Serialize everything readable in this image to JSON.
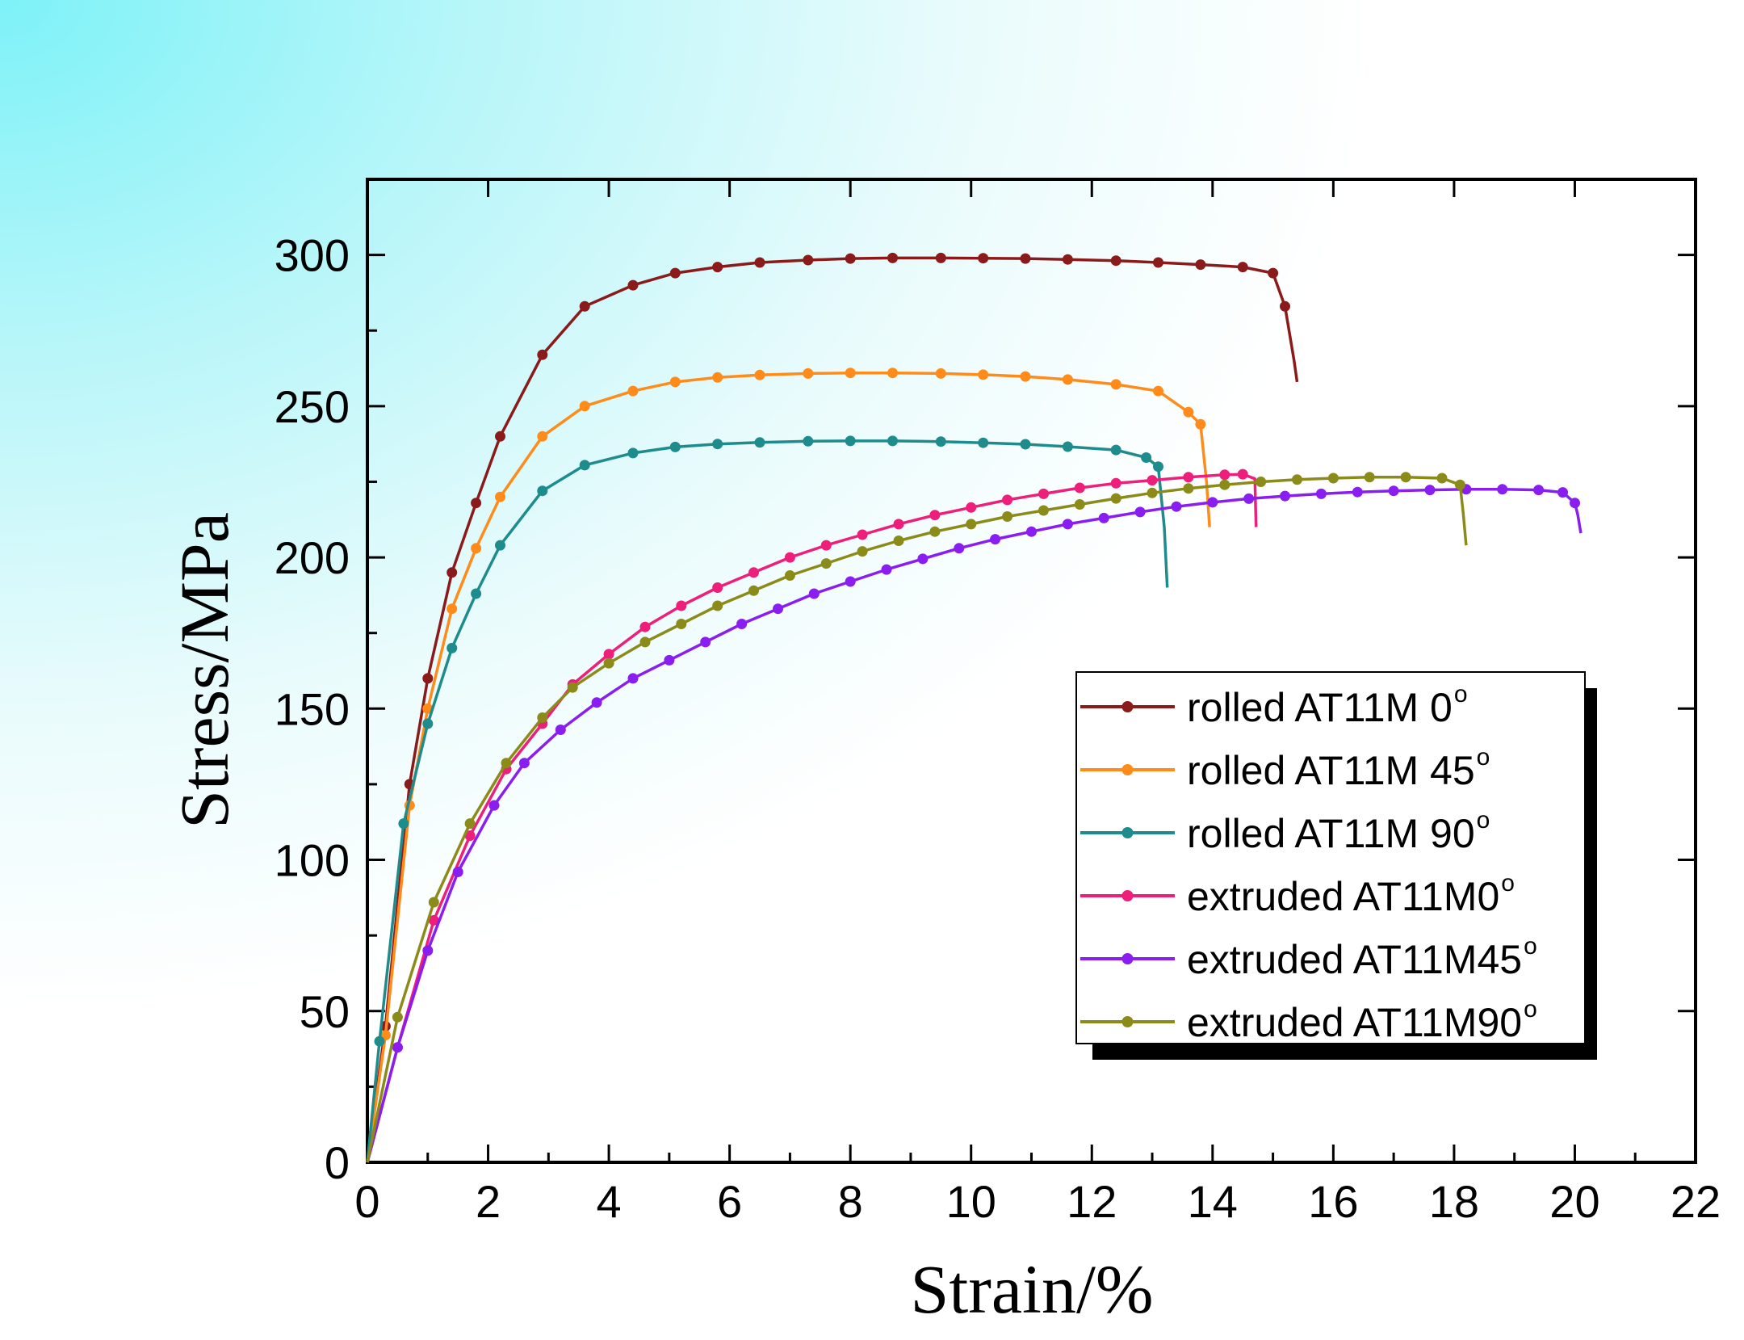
{
  "chart_data": {
    "type": "line",
    "xlabel": "Strain/%",
    "ylabel": "Stress/MPa",
    "xlim": [
      0,
      22
    ],
    "ylim": [
      0,
      325
    ],
    "xticks": [
      "0",
      "2",
      "4",
      "6",
      "8",
      "10",
      "12",
      "14",
      "16",
      "18",
      "20",
      "22"
    ],
    "yticks": [
      "0",
      "50",
      "100",
      "150",
      "200",
      "250",
      "300"
    ],
    "legend_position": "right",
    "series": [
      {
        "name": "rolled AT11M 0",
        "degree": "o",
        "color": "#8b1a1a",
        "points": [
          [
            0,
            0
          ],
          [
            0.3,
            45
          ],
          [
            0.7,
            125
          ],
          [
            1.0,
            160
          ],
          [
            1.4,
            195
          ],
          [
            1.8,
            218
          ],
          [
            2.2,
            240
          ],
          [
            2.9,
            267
          ],
          [
            3.6,
            283
          ],
          [
            4.4,
            290
          ],
          [
            5.1,
            294
          ],
          [
            5.8,
            296
          ],
          [
            6.5,
            297.5
          ],
          [
            7.3,
            298.3
          ],
          [
            8.0,
            298.8
          ],
          [
            8.7,
            299
          ],
          [
            9.5,
            299
          ],
          [
            10.2,
            298.9
          ],
          [
            10.9,
            298.8
          ],
          [
            11.6,
            298.5
          ],
          [
            12.4,
            298.1
          ],
          [
            13.1,
            297.5
          ],
          [
            13.8,
            296.8
          ],
          [
            14.5,
            296
          ],
          [
            15.0,
            294
          ],
          [
            15.2,
            283
          ],
          [
            15.35,
            265
          ],
          [
            15.4,
            258
          ]
        ]
      },
      {
        "name": "rolled AT11M 45",
        "degree": "o",
        "color": "#ff8c1a",
        "points": [
          [
            0,
            0
          ],
          [
            0.3,
            42
          ],
          [
            0.7,
            118
          ],
          [
            1.0,
            150
          ],
          [
            1.4,
            183
          ],
          [
            1.8,
            203
          ],
          [
            2.2,
            220
          ],
          [
            2.9,
            240
          ],
          [
            3.6,
            250
          ],
          [
            4.4,
            255
          ],
          [
            5.1,
            258
          ],
          [
            5.8,
            259.5
          ],
          [
            6.5,
            260.3
          ],
          [
            7.3,
            260.8
          ],
          [
            8.0,
            261
          ],
          [
            8.7,
            261
          ],
          [
            9.5,
            260.8
          ],
          [
            10.2,
            260.4
          ],
          [
            10.9,
            259.8
          ],
          [
            11.6,
            258.8
          ],
          [
            12.4,
            257.2
          ],
          [
            13.1,
            255
          ],
          [
            13.6,
            248
          ],
          [
            13.8,
            244
          ],
          [
            13.9,
            225
          ],
          [
            13.95,
            210
          ]
        ]
      },
      {
        "name": "rolled AT11M 90",
        "degree": "o",
        "color": "#1e8c8c",
        "points": [
          [
            0,
            0
          ],
          [
            0.2,
            40
          ],
          [
            0.6,
            112
          ],
          [
            1.0,
            145
          ],
          [
            1.4,
            170
          ],
          [
            1.8,
            188
          ],
          [
            2.2,
            204
          ],
          [
            2.9,
            222
          ],
          [
            3.6,
            230.5
          ],
          [
            4.4,
            234.5
          ],
          [
            5.1,
            236.5
          ],
          [
            5.8,
            237.5
          ],
          [
            6.5,
            238
          ],
          [
            7.3,
            238.4
          ],
          [
            8.0,
            238.5
          ],
          [
            8.7,
            238.5
          ],
          [
            9.5,
            238.3
          ],
          [
            10.2,
            237.9
          ],
          [
            10.9,
            237.4
          ],
          [
            11.6,
            236.6
          ],
          [
            12.4,
            235.5
          ],
          [
            12.9,
            233
          ],
          [
            13.1,
            230
          ],
          [
            13.2,
            210
          ],
          [
            13.25,
            190
          ]
        ]
      },
      {
        "name": "extruded AT11M0",
        "degree": "o",
        "color": "#ee1f7a",
        "points": [
          [
            0,
            0
          ],
          [
            0.5,
            38
          ],
          [
            1.1,
            80
          ],
          [
            1.7,
            108
          ],
          [
            2.3,
            130
          ],
          [
            2.9,
            145
          ],
          [
            3.4,
            158
          ],
          [
            4.0,
            168
          ],
          [
            4.6,
            177
          ],
          [
            5.2,
            184
          ],
          [
            5.8,
            190
          ],
          [
            6.4,
            195
          ],
          [
            7.0,
            200
          ],
          [
            7.6,
            204
          ],
          [
            8.2,
            207.5
          ],
          [
            8.8,
            211
          ],
          [
            9.4,
            214
          ],
          [
            10.0,
            216.5
          ],
          [
            10.6,
            219
          ],
          [
            11.2,
            221
          ],
          [
            11.8,
            223
          ],
          [
            12.4,
            224.5
          ],
          [
            13.0,
            225.5
          ],
          [
            13.6,
            226.5
          ],
          [
            14.2,
            227.3
          ],
          [
            14.5,
            227.5
          ],
          [
            14.7,
            226
          ],
          [
            14.72,
            210
          ]
        ]
      },
      {
        "name": "extruded AT11M45",
        "degree": "o",
        "color": "#8a1ef0",
        "points": [
          [
            0,
            0
          ],
          [
            0.5,
            38
          ],
          [
            1.0,
            70
          ],
          [
            1.5,
            96
          ],
          [
            2.1,
            118
          ],
          [
            2.6,
            132
          ],
          [
            3.2,
            143
          ],
          [
            3.8,
            152
          ],
          [
            4.4,
            160
          ],
          [
            5.0,
            166
          ],
          [
            5.6,
            172
          ],
          [
            6.2,
            178
          ],
          [
            6.8,
            183
          ],
          [
            7.4,
            188
          ],
          [
            8.0,
            192
          ],
          [
            8.6,
            196
          ],
          [
            9.2,
            199.5
          ],
          [
            9.8,
            203
          ],
          [
            10.4,
            206
          ],
          [
            11.0,
            208.5
          ],
          [
            11.6,
            211
          ],
          [
            12.2,
            213
          ],
          [
            12.8,
            215
          ],
          [
            13.4,
            216.8
          ],
          [
            14.0,
            218.2
          ],
          [
            14.6,
            219.4
          ],
          [
            15.2,
            220.3
          ],
          [
            15.8,
            221
          ],
          [
            16.4,
            221.6
          ],
          [
            17.0,
            222
          ],
          [
            17.6,
            222.3
          ],
          [
            18.2,
            222.5
          ],
          [
            18.8,
            222.5
          ],
          [
            19.4,
            222.3
          ],
          [
            19.8,
            221.5
          ],
          [
            20.0,
            218
          ],
          [
            20.05,
            214
          ],
          [
            20.1,
            208
          ]
        ]
      },
      {
        "name": "extruded AT11M90",
        "degree": "o",
        "color": "#8b8b1a",
        "points": [
          [
            0,
            0
          ],
          [
            0.5,
            48
          ],
          [
            1.1,
            86
          ],
          [
            1.7,
            112
          ],
          [
            2.3,
            132
          ],
          [
            2.9,
            147
          ],
          [
            3.4,
            157
          ],
          [
            4.0,
            165
          ],
          [
            4.6,
            172
          ],
          [
            5.2,
            178
          ],
          [
            5.8,
            184
          ],
          [
            6.4,
            189
          ],
          [
            7.0,
            194
          ],
          [
            7.6,
            198
          ],
          [
            8.2,
            202
          ],
          [
            8.8,
            205.5
          ],
          [
            9.4,
            208.5
          ],
          [
            10.0,
            211
          ],
          [
            10.6,
            213.5
          ],
          [
            11.2,
            215.5
          ],
          [
            11.8,
            217.5
          ],
          [
            12.4,
            219.5
          ],
          [
            13.0,
            221.3
          ],
          [
            13.6,
            222.8
          ],
          [
            14.2,
            224
          ],
          [
            14.8,
            225
          ],
          [
            15.4,
            225.7
          ],
          [
            16.0,
            226.2
          ],
          [
            16.6,
            226.5
          ],
          [
            17.2,
            226.5
          ],
          [
            17.8,
            226.2
          ],
          [
            18.1,
            224
          ],
          [
            18.15,
            215
          ],
          [
            18.2,
            204
          ]
        ]
      }
    ]
  }
}
